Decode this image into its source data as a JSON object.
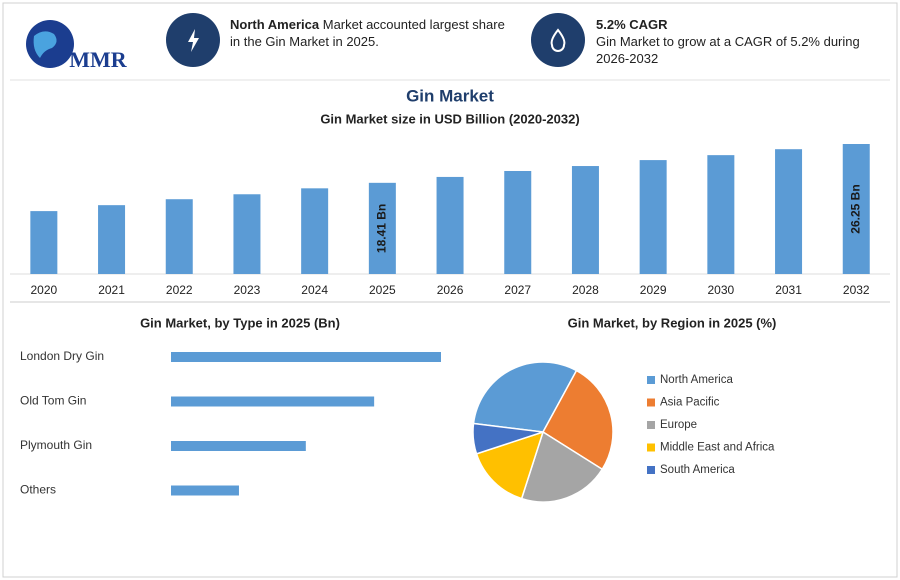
{
  "header": {
    "logo": "MMR",
    "highlights": [
      {
        "title": "North America",
        "text": "Market accounted largest share in the Gin Market in 2025."
      },
      {
        "title": "5.2% CAGR",
        "text": "Gin Market to grow at a CAGR of 5.2% during 2026-2032"
      }
    ]
  },
  "chart_data": [
    {
      "type": "bar",
      "title": "Gin Market",
      "subtitle": "Gin Market size in USD Billion (2020-2032)",
      "categories": [
        "2020",
        "2021",
        "2022",
        "2023",
        "2024",
        "2025",
        "2026",
        "2027",
        "2028",
        "2029",
        "2030",
        "2031",
        "2032"
      ],
      "values": [
        12.7,
        13.9,
        15.1,
        16.1,
        17.3,
        18.41,
        19.6,
        20.8,
        21.8,
        23.0,
        24.0,
        25.2,
        26.25
      ],
      "value_labels": [
        null,
        null,
        null,
        null,
        null,
        "18.41 Bn",
        null,
        null,
        null,
        null,
        null,
        null,
        "26.25 Bn"
      ],
      "color": "#5b9bd5"
    },
    {
      "type": "bar",
      "orientation": "horizontal",
      "title": "Gin Market, by Type in 2025 (Bn)",
      "categories": [
        "London Dry Gin",
        "Old Tom Gin",
        "Plymouth Gin",
        "Others"
      ],
      "values": [
        7.35,
        5.53,
        3.67,
        1.85
      ],
      "color": "#5b9bd5"
    },
    {
      "type": "pie",
      "title": "Gin Market, by Region in 2025 (%)",
      "categories": [
        "North America",
        "Asia Pacific",
        "Europe",
        "Middle East and Africa",
        "South America"
      ],
      "values": [
        31,
        26,
        21,
        15,
        7
      ],
      "colors": [
        "#5b9bd5",
        "#ed7d31",
        "#a5a5a5",
        "#ffc000",
        "#4472c4"
      ]
    }
  ]
}
